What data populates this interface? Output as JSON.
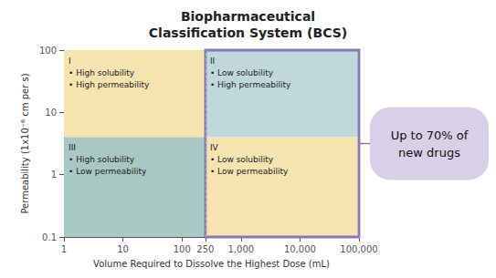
{
  "chart_data": {
    "type": "quadrant",
    "title": "Biopharmaceutical\nClassification System (BCS)",
    "xlabel": "Volume Required to Dissolve the Highest Dose (mL)",
    "ylabel": "Permeability (1x10⁻⁶ cm per s)",
    "log": true,
    "grid": false,
    "xlim": [
      1,
      100000
    ],
    "ylim": [
      0.1,
      100
    ],
    "xticks": [
      1,
      10,
      100,
      250,
      {
        "value": 1000,
        "label": "1,000"
      },
      {
        "value": 10000,
        "label": "10,000"
      },
      {
        "value": 100000,
        "label": "100,000"
      }
    ],
    "yticks": [
      0.1,
      1,
      10,
      100
    ],
    "x_boundary": 250,
    "y_boundary": 4,
    "boundary_line": {
      "color": "#AAAAAA",
      "line_style": "dashed"
    },
    "quadrants": [
      {
        "label": "I\n• High solubility\n• High permeability",
        "color": "#F5E4B0"
      },
      {
        "label": "II\n• Low solubility\n• High permeability",
        "color": "#C0D8DC"
      },
      {
        "label": "III\n• High solubility\n• Low permeability",
        "color": "#A8C8C4"
      },
      {
        "label": "IV\n• Low solubility\n• Low permeability",
        "color": "#F5E4B0"
      }
    ],
    "highlight": {
      "text": "Up to 70% of\nnew drugs",
      "border_color": "#8878B4",
      "background": "#D8D0E8"
    }
  }
}
